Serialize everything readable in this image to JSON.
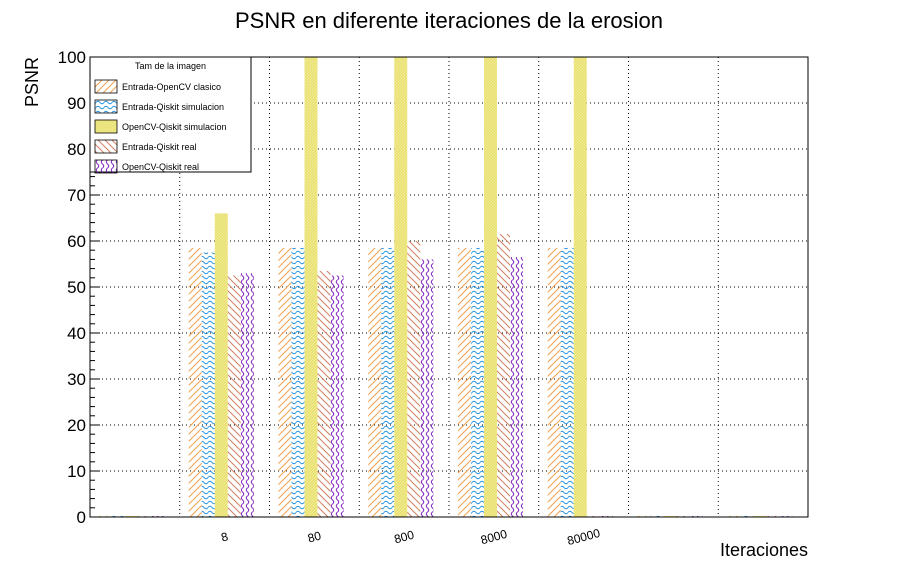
{
  "chart_data": {
    "type": "bar",
    "title": "PSNR en diferente iteraciones de la erosion",
    "xlabel": "Iteraciones",
    "ylabel": "PSNR",
    "ylim": [
      0,
      100
    ],
    "yticks": [
      0,
      10,
      20,
      30,
      40,
      50,
      60,
      70,
      80,
      90,
      100
    ],
    "grid": true,
    "categories": [
      "",
      "8",
      "80",
      "800",
      "8000",
      "80000",
      "",
      ""
    ],
    "legend": {
      "title": "Tam de la imagen",
      "placement": "top-left"
    },
    "series": [
      {
        "name": "Entrada-OpenCV clasico",
        "color": "#f0a050",
        "pattern": "diag-right",
        "values": [
          0,
          58.5,
          58.5,
          58.5,
          58.5,
          58.5,
          0,
          0
        ]
      },
      {
        "name": "Entrada-Qiskit simulacion",
        "color": "#2090e0",
        "pattern": "wave",
        "values": [
          0,
          57.5,
          58.5,
          58.5,
          58.5,
          58.5,
          0,
          0
        ]
      },
      {
        "name": "OpenCV-Qiskit simulacion",
        "color": "#e8e070",
        "pattern": "dense",
        "values": [
          0,
          66,
          100,
          100,
          100,
          100,
          0,
          0
        ]
      },
      {
        "name": "Entrada-Qiskit real",
        "color": "#d08060",
        "pattern": "diag-left",
        "values": [
          0,
          52.5,
          53.5,
          60,
          61.5,
          0,
          0,
          0
        ]
      },
      {
        "name": "OpenCV-Qiskit real",
        "color": "#8020c0",
        "pattern": "wave-v",
        "values": [
          0,
          53,
          52.5,
          56,
          56.5,
          0,
          0,
          0
        ]
      }
    ]
  }
}
